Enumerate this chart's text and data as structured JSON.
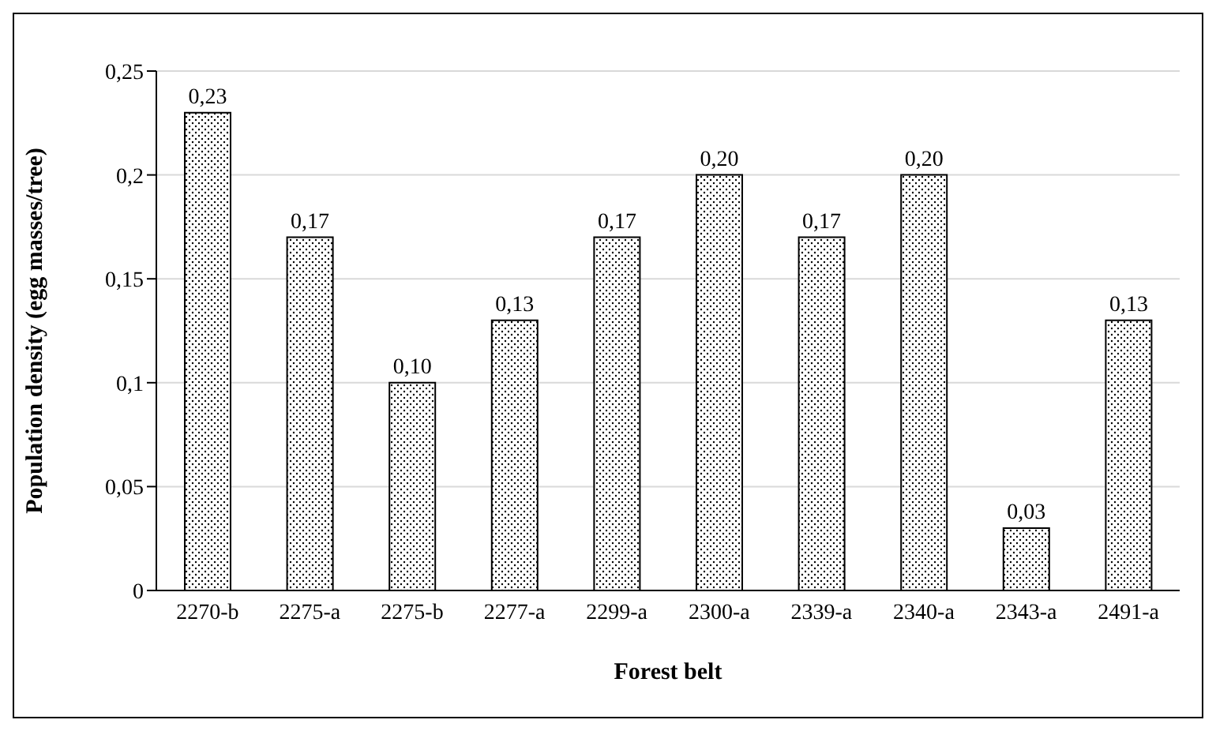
{
  "chart_data": {
    "type": "bar",
    "xlabel": "Forest belt",
    "ylabel": "Population density (egg masses/tree)",
    "categories": [
      "2270-b",
      "2275-a",
      "2275-b",
      "2277-a",
      "2299-a",
      "2300-a",
      "2339-a",
      "2340-a",
      "2343-a",
      "2491-a"
    ],
    "values": [
      0.23,
      0.17,
      0.1,
      0.13,
      0.17,
      0.2,
      0.17,
      0.2,
      0.03,
      0.13
    ],
    "value_labels": [
      "0,23",
      "0,17",
      "0,10",
      "0,13",
      "0,17",
      "0,20",
      "0,17",
      "0,20",
      "0,03",
      "0,13"
    ],
    "color": "#000000",
    "ylim": [
      0,
      0.25
    ],
    "yticks": [
      {
        "value": 0,
        "label": "0"
      },
      {
        "value": 0.05,
        "label": "0,05"
      },
      {
        "value": 0.1,
        "label": "0,1"
      },
      {
        "value": 0.15,
        "label": "0,15"
      },
      {
        "value": 0.2,
        "label": "0,2"
      },
      {
        "value": 0.25,
        "label": "0,25"
      }
    ],
    "grid": "y",
    "legend": false
  }
}
